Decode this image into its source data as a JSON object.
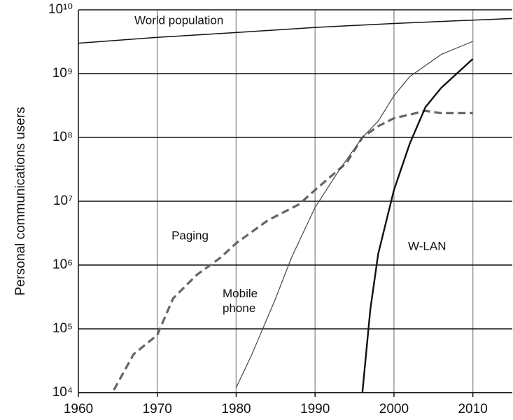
{
  "chart_data": {
    "type": "line",
    "y_label": "Personal communications users",
    "log_y": true,
    "grid": true,
    "xlim": [
      1960,
      2015
    ],
    "xticks": [
      1960,
      1970,
      1980,
      1990,
      2000,
      2010
    ],
    "ylim": [
      10000,
      10000000000
    ],
    "yticks": [
      {
        "value": 10000,
        "label": "10⁴"
      },
      {
        "value": 100000,
        "label": "10⁵"
      },
      {
        "value": 1000000,
        "label": "10⁶"
      },
      {
        "value": 10000000,
        "label": "10⁷"
      },
      {
        "value": 100000000,
        "label": "10⁸"
      },
      {
        "value": 1000000000,
        "label": "10⁹"
      },
      {
        "value": 10000000000,
        "label": "10¹⁰"
      }
    ],
    "series": [
      {
        "name": "World population",
        "color": "#111111",
        "x": [
          1960,
          1970,
          1980,
          1990,
          2000,
          2010,
          2015
        ],
        "values": [
          3000000000,
          3700000000,
          4400000000,
          5300000000,
          6100000000,
          6900000000,
          7300000000
        ]
      },
      {
        "name": "Paging",
        "color": "#666666",
        "x": [
          1964.5,
          1967,
          1970,
          1972,
          1975,
          1978,
          1980,
          1984,
          1988,
          1990,
          1994,
          1996,
          1998,
          2000,
          2004,
          2006,
          2010
        ],
        "values": [
          11000,
          40000,
          80000,
          300000,
          700000,
          1300000,
          2200000,
          5000000,
          9000000,
          15000000,
          40000000,
          100000000,
          150000000,
          200000000,
          260000000,
          240000000,
          240000000
        ]
      },
      {
        "name": "Mobile phone",
        "color": "#444444",
        "x": [
          1980,
          1982,
          1985,
          1987,
          1990,
          1993,
          1996,
          1998,
          2000,
          2002,
          2006,
          2010
        ],
        "values": [
          12000,
          40000,
          300000,
          1300000,
          8000000,
          30000000,
          100000000,
          180000000,
          450000000,
          900000000,
          2000000000,
          3200000000
        ]
      },
      {
        "name": "W-LAN",
        "color": "#111111",
        "x": [
          1996,
          1997,
          1998,
          2000,
          2002,
          2004,
          2006,
          2010
        ],
        "values": [
          10000,
          200000,
          1500000,
          15000000,
          80000000,
          300000000,
          600000000,
          1700000000
        ]
      }
    ]
  }
}
